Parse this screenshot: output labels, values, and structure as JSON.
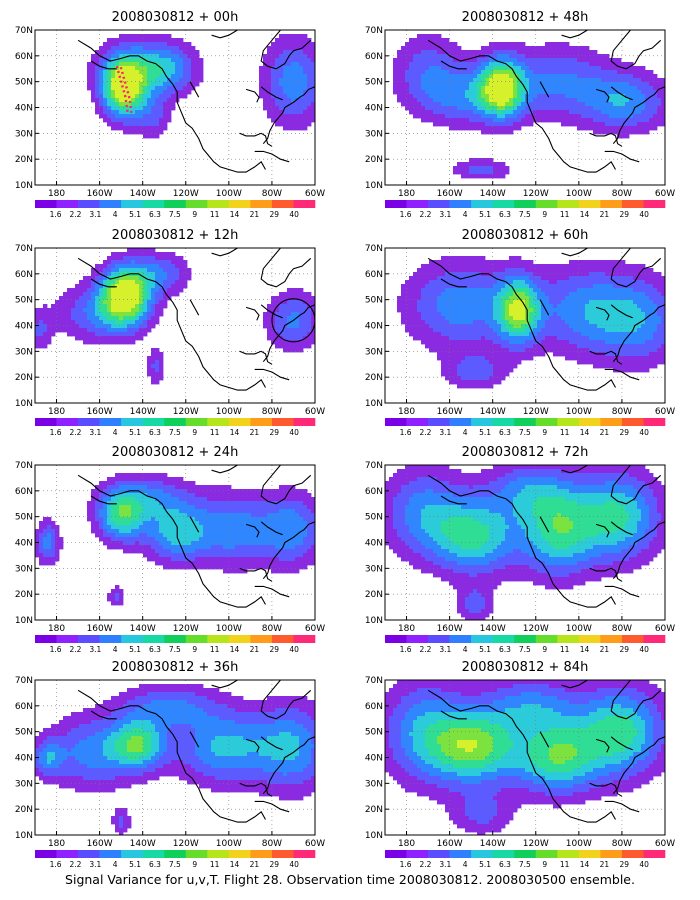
{
  "caption": "Signal Variance for u,v,T. Flight 28. Observation time 2008030812. 2008030500 ensemble.",
  "palette": [
    "#7a00e6",
    "#8f20ff",
    "#5a4cff",
    "#2f7fff",
    "#27c7df",
    "#17d9a3",
    "#10cf5a",
    "#66dd2a",
    "#b7e51b",
    "#f2d21a",
    "#ff9c1a",
    "#ff5a2f",
    "#ff2a77"
  ],
  "cmap_fill": [
    "#8a2be2",
    "#5b5bff",
    "#2f86ff",
    "#2ccbd9",
    "#30dd94",
    "#7be23f",
    "#d6f02b"
  ],
  "coast_color": "#000000",
  "chart_data": [
    {
      "type": "heatmap",
      "title": "2008030812 + 00h",
      "xlabel": "",
      "ylabel": "",
      "xlim": [
        170,
        300
      ],
      "ylim": [
        10,
        70
      ],
      "x_tick_labels": [
        "180",
        "160W",
        "140W",
        "120W",
        "100W",
        "80W",
        "60W"
      ],
      "y_tick_labels": [
        "10N",
        "20N",
        "30N",
        "40N",
        "50N",
        "60N",
        "70N"
      ],
      "colorbar_labels": [
        "1.6",
        "2.2",
        "3.1",
        "4",
        "5.1",
        "6.3",
        "7.5",
        "9",
        "11",
        "14",
        "21",
        "29",
        "40"
      ],
      "grid": true,
      "centers": [
        {
          "lon": 211,
          "lat": 47,
          "amp": 7.2,
          "sx": 7,
          "sy": 8
        },
        {
          "lon": 218,
          "lat": 55,
          "amp": 3.2,
          "sx": 14,
          "sy": 8
        },
        {
          "lon": 232,
          "lat": 55,
          "amp": 2.6,
          "sx": 10,
          "sy": 7
        },
        {
          "lon": 225,
          "lat": 36,
          "amp": 2.0,
          "sx": 6,
          "sy": 6
        },
        {
          "lon": 290,
          "lat": 50,
          "amp": 3.6,
          "sx": 10,
          "sy": 12
        }
      ],
      "flight_track": [
        [
          208,
          56
        ],
        [
          210,
          50
        ],
        [
          212,
          44
        ],
        [
          213,
          38
        ]
      ],
      "circle": null
    },
    {
      "type": "heatmap",
      "title": "2008030812 + 48h",
      "xlabel": "",
      "ylabel": "",
      "xlim": [
        170,
        300
      ],
      "ylim": [
        10,
        70
      ],
      "x_tick_labels": [
        "180",
        "160W",
        "140W",
        "120W",
        "100W",
        "80W",
        "60W"
      ],
      "y_tick_labels": [
        "10N",
        "20N",
        "30N",
        "40N",
        "50N",
        "60N",
        "70N"
      ],
      "colorbar_labels": [
        "1.6",
        "2.2",
        "3.1",
        "4",
        "5.1",
        "6.3",
        "7.5",
        "9",
        "11",
        "14",
        "21",
        "29",
        "40"
      ],
      "grid": true,
      "centers": [
        {
          "lon": 224,
          "lat": 48,
          "amp": 6.5,
          "sx": 7,
          "sy": 8
        },
        {
          "lon": 208,
          "lat": 44,
          "amp": 3.0,
          "sx": 16,
          "sy": 8
        },
        {
          "lon": 250,
          "lat": 50,
          "amp": 3.0,
          "sx": 18,
          "sy": 10
        },
        {
          "lon": 282,
          "lat": 42,
          "amp": 3.6,
          "sx": 14,
          "sy": 8
        },
        {
          "lon": 190,
          "lat": 55,
          "amp": 2.4,
          "sx": 12,
          "sy": 10
        },
        {
          "lon": 215,
          "lat": 16,
          "amp": 2.4,
          "sx": 10,
          "sy": 3
        }
      ],
      "flight_track": [],
      "circle": null
    },
    {
      "type": "heatmap",
      "title": "2008030812 + 12h",
      "xlabel": "",
      "ylabel": "",
      "xlim": [
        170,
        300
      ],
      "ylim": [
        10,
        70
      ],
      "x_tick_labels": [
        "180",
        "160W",
        "140W",
        "120W",
        "100W",
        "80W",
        "60W"
      ],
      "y_tick_labels": [
        "10N",
        "20N",
        "30N",
        "40N",
        "50N",
        "60N",
        "70N"
      ],
      "colorbar_labels": [
        "1.6",
        "2.2",
        "3.1",
        "4",
        "5.1",
        "6.3",
        "7.5",
        "9",
        "11",
        "14",
        "21",
        "29",
        "40"
      ],
      "grid": true,
      "centers": [
        {
          "lon": 212,
          "lat": 52,
          "amp": 7.5,
          "sx": 8,
          "sy": 8
        },
        {
          "lon": 200,
          "lat": 45,
          "amp": 3.0,
          "sx": 14,
          "sy": 8
        },
        {
          "lon": 228,
          "lat": 60,
          "amp": 2.8,
          "sx": 10,
          "sy": 6
        },
        {
          "lon": 290,
          "lat": 42,
          "amp": 3.2,
          "sx": 9,
          "sy": 8
        },
        {
          "lon": 226,
          "lat": 24,
          "amp": 2.2,
          "sx": 3,
          "sy": 5
        },
        {
          "lon": 172,
          "lat": 38,
          "amp": 2.0,
          "sx": 4,
          "sy": 6
        }
      ],
      "flight_track": [],
      "circle": {
        "lon": 290,
        "lat": 42,
        "r": 10
      }
    },
    {
      "type": "heatmap",
      "title": "2008030812 + 60h",
      "xlabel": "",
      "ylabel": "",
      "xlim": [
        170,
        300
      ],
      "ylim": [
        10,
        70
      ],
      "x_tick_labels": [
        "180",
        "160W",
        "140W",
        "120W",
        "100W",
        "80W",
        "60W"
      ],
      "y_tick_labels": [
        "10N",
        "20N",
        "30N",
        "40N",
        "50N",
        "60N",
        "70N"
      ],
      "colorbar_labels": [
        "1.6",
        "2.2",
        "3.1",
        "4",
        "5.1",
        "6.3",
        "7.5",
        "9",
        "11",
        "14",
        "21",
        "29",
        "40"
      ],
      "grid": true,
      "centers": [
        {
          "lon": 232,
          "lat": 46,
          "amp": 6.0,
          "sx": 7,
          "sy": 9
        },
        {
          "lon": 205,
          "lat": 48,
          "amp": 3.6,
          "sx": 18,
          "sy": 12
        },
        {
          "lon": 262,
          "lat": 46,
          "amp": 3.4,
          "sx": 16,
          "sy": 12
        },
        {
          "lon": 288,
          "lat": 42,
          "amp": 3.4,
          "sx": 14,
          "sy": 12
        },
        {
          "lon": 212,
          "lat": 22,
          "amp": 2.4,
          "sx": 10,
          "sy": 5
        }
      ],
      "flight_track": [],
      "circle": null
    },
    {
      "type": "heatmap",
      "title": "2008030812 + 24h",
      "xlabel": "",
      "ylabel": "",
      "xlim": [
        170,
        300
      ],
      "ylim": [
        10,
        70
      ],
      "x_tick_labels": [
        "180",
        "160W",
        "140W",
        "120W",
        "100W",
        "80W",
        "60W"
      ],
      "y_tick_labels": [
        "10N",
        "20N",
        "30N",
        "40N",
        "50N",
        "60N",
        "70N"
      ],
      "colorbar_labels": [
        "1.6",
        "2.2",
        "3.1",
        "4",
        "5.1",
        "6.3",
        "7.5",
        "9",
        "11",
        "14",
        "21",
        "29",
        "40"
      ],
      "grid": true,
      "centers": [
        {
          "lon": 210,
          "lat": 50,
          "amp": 5.2,
          "sx": 8,
          "sy": 7
        },
        {
          "lon": 235,
          "lat": 44,
          "amp": 4.2,
          "sx": 10,
          "sy": 8
        },
        {
          "lon": 262,
          "lat": 45,
          "amp": 3.6,
          "sx": 14,
          "sy": 10
        },
        {
          "lon": 290,
          "lat": 45,
          "amp": 3.4,
          "sx": 10,
          "sy": 10
        },
        {
          "lon": 176,
          "lat": 40,
          "amp": 3.4,
          "sx": 4,
          "sy": 6
        },
        {
          "lon": 222,
          "lat": 58,
          "amp": 2.8,
          "sx": 14,
          "sy": 6
        },
        {
          "lon": 208,
          "lat": 19,
          "amp": 2.2,
          "sx": 3,
          "sy": 3
        }
      ],
      "flight_track": [],
      "circle": null
    },
    {
      "type": "heatmap",
      "title": "2008030812 + 72h",
      "xlabel": "",
      "ylabel": "",
      "xlim": [
        170,
        300
      ],
      "ylim": [
        10,
        70
      ],
      "x_tick_labels": [
        "180",
        "160W",
        "140W",
        "120W",
        "100W",
        "80W",
        "60W"
      ],
      "y_tick_labels": [
        "10N",
        "20N",
        "30N",
        "40N",
        "50N",
        "60N",
        "70N"
      ],
      "colorbar_labels": [
        "1.6",
        "2.2",
        "3.1",
        "4",
        "5.1",
        "6.3",
        "7.5",
        "9",
        "11",
        "14",
        "21",
        "29",
        "40"
      ],
      "grid": true,
      "centers": [
        {
          "lon": 212,
          "lat": 42,
          "amp": 5.0,
          "sx": 14,
          "sy": 10
        },
        {
          "lon": 250,
          "lat": 44,
          "amp": 5.0,
          "sx": 12,
          "sy": 12
        },
        {
          "lon": 278,
          "lat": 50,
          "amp": 5.2,
          "sx": 14,
          "sy": 12
        },
        {
          "lon": 188,
          "lat": 52,
          "amp": 3.4,
          "sx": 14,
          "sy": 12
        },
        {
          "lon": 236,
          "lat": 60,
          "amp": 3.0,
          "sx": 14,
          "sy": 8
        },
        {
          "lon": 212,
          "lat": 16,
          "amp": 2.4,
          "sx": 6,
          "sy": 5
        }
      ],
      "flight_track": [],
      "circle": null
    },
    {
      "type": "heatmap",
      "title": "2008030812 + 36h",
      "xlabel": "",
      "ylabel": "",
      "xlim": [
        170,
        300
      ],
      "ylim": [
        10,
        70
      ],
      "x_tick_labels": [
        "180",
        "160W",
        "140W",
        "120W",
        "100W",
        "80W",
        "60W"
      ],
      "y_tick_labels": [
        "10N",
        "20N",
        "30N",
        "40N",
        "50N",
        "60N",
        "70N"
      ],
      "colorbar_labels": [
        "1.6",
        "2.2",
        "3.1",
        "4",
        "5.1",
        "6.3",
        "7.5",
        "9",
        "11",
        "14",
        "21",
        "29",
        "40"
      ],
      "grid": true,
      "centers": [
        {
          "lon": 218,
          "lat": 45,
          "amp": 5.2,
          "sx": 9,
          "sy": 7
        },
        {
          "lon": 196,
          "lat": 42,
          "amp": 3.4,
          "sx": 14,
          "sy": 10
        },
        {
          "lon": 258,
          "lat": 44,
          "amp": 4.2,
          "sx": 16,
          "sy": 10
        },
        {
          "lon": 290,
          "lat": 44,
          "amp": 3.8,
          "sx": 12,
          "sy": 12
        },
        {
          "lon": 232,
          "lat": 60,
          "amp": 3.0,
          "sx": 16,
          "sy": 6
        },
        {
          "lon": 176,
          "lat": 40,
          "amp": 3.0,
          "sx": 5,
          "sy": 5
        },
        {
          "lon": 210,
          "lat": 15,
          "amp": 2.2,
          "sx": 3,
          "sy": 4
        }
      ],
      "flight_track": [],
      "circle": null
    },
    {
      "type": "heatmap",
      "title": "2008030812 + 84h",
      "xlabel": "",
      "ylabel": "",
      "xlim": [
        170,
        300
      ],
      "ylim": [
        10,
        70
      ],
      "x_tick_labels": [
        "180",
        "160W",
        "140W",
        "120W",
        "100W",
        "80W",
        "60W"
      ],
      "y_tick_labels": [
        "10N",
        "20N",
        "30N",
        "40N",
        "50N",
        "60N",
        "70N"
      ],
      "colorbar_labels": [
        "1.6",
        "2.2",
        "3.1",
        "4",
        "5.1",
        "6.3",
        "7.5",
        "9",
        "11",
        "14",
        "21",
        "29",
        "40"
      ],
      "grid": true,
      "centers": [
        {
          "lon": 212,
          "lat": 44,
          "amp": 6.0,
          "sx": 14,
          "sy": 10
        },
        {
          "lon": 250,
          "lat": 40,
          "amp": 5.6,
          "sx": 14,
          "sy": 10
        },
        {
          "lon": 280,
          "lat": 50,
          "amp": 5.4,
          "sx": 14,
          "sy": 12
        },
        {
          "lon": 188,
          "lat": 50,
          "amp": 3.8,
          "sx": 14,
          "sy": 14
        },
        {
          "lon": 238,
          "lat": 60,
          "amp": 3.2,
          "sx": 16,
          "sy": 8
        },
        {
          "lon": 215,
          "lat": 18,
          "amp": 2.2,
          "sx": 10,
          "sy": 6
        }
      ],
      "flight_track": [],
      "circle": null
    }
  ]
}
